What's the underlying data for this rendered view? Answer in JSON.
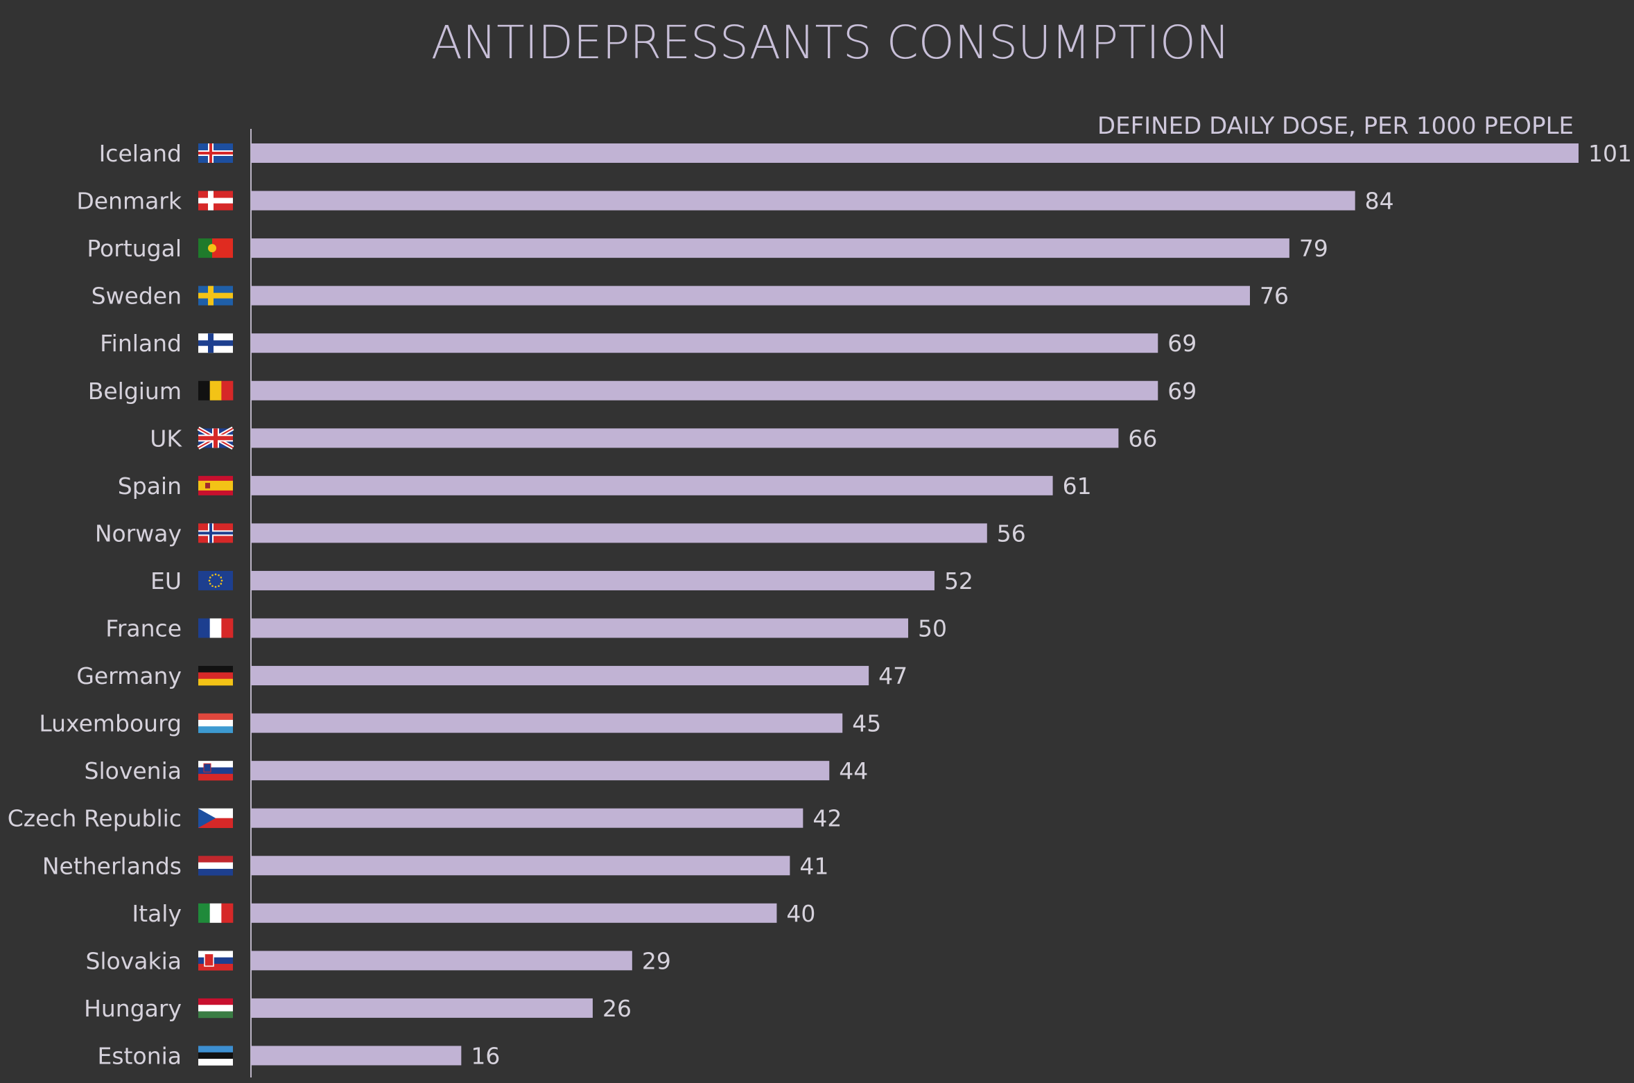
{
  "chart_data": {
    "type": "bar",
    "orientation": "horizontal",
    "title": "ANTIDEPRESSANTS CONSUMPTION",
    "subtitle": "DEFINED DAILY DOSE, PER 1000 PEOPLE",
    "categories": [
      "Iceland",
      "Denmark",
      "Portugal",
      "Sweden",
      "Finland",
      "Belgium",
      "UK",
      "Spain",
      "Norway",
      "EU",
      "France",
      "Germany",
      "Luxembourg",
      "Slovenia",
      "Czech Republic",
      "Netherlands",
      "Italy",
      "Slovakia",
      "Hungary",
      "Estonia"
    ],
    "values": [
      101,
      84,
      79,
      76,
      69,
      69,
      66,
      61,
      56,
      52,
      50,
      47,
      45,
      44,
      42,
      41,
      40,
      29,
      26,
      16
    ],
    "value_labels": [
      "101",
      "84",
      "79",
      "76",
      "69",
      "69",
      "66",
      "61",
      "56",
      "52",
      "50",
      "47",
      "45",
      "44",
      "42",
      "41",
      "40",
      "29",
      "26",
      "16"
    ],
    "flags": [
      "iceland-flag",
      "denmark-flag",
      "portugal-flag",
      "sweden-flag",
      "finland-flag",
      "belgium-flag",
      "uk-flag",
      "spain-flag",
      "norway-flag",
      "eu-flag",
      "france-flag",
      "germany-flag",
      "luxembourg-flag",
      "slovenia-flag",
      "czech-republic-flag",
      "netherlands-flag",
      "italy-flag",
      "slovakia-flag",
      "hungary-flag",
      "estonia-flag"
    ],
    "xlim": [
      0,
      101
    ],
    "grid": false,
    "legend": "none",
    "colors": {
      "background": "#333333",
      "bar": "#c1b3d4",
      "axis": "#bdb5c7"
    }
  }
}
